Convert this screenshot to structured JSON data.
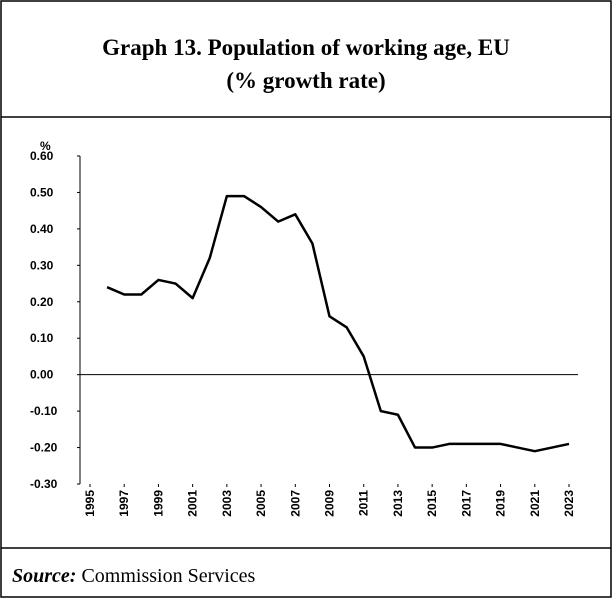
{
  "chart_data": {
    "type": "line",
    "title": "Graph 13. Population of working age, EU",
    "subtitle": "(% growth rate)",
    "y_label": "%",
    "x": [
      1996,
      1997,
      1998,
      1999,
      2000,
      2001,
      2002,
      2003,
      2004,
      2005,
      2006,
      2007,
      2008,
      2009,
      2010,
      2011,
      2012,
      2013,
      2014,
      2015,
      2016,
      2017,
      2018,
      2019,
      2020,
      2021,
      2022,
      2023
    ],
    "series": [
      {
        "name": null,
        "color": "#000000",
        "values": [
          0.24,
          0.22,
          0.22,
          0.26,
          0.25,
          0.21,
          0.32,
          0.49,
          0.49,
          0.46,
          0.42,
          0.44,
          0.36,
          0.16,
          0.13,
          0.05,
          -0.1,
          -0.11,
          -0.2,
          -0.2,
          -0.19,
          -0.19,
          -0.19,
          -0.19,
          -0.2,
          -0.21,
          -0.2,
          -0.19
        ]
      }
    ],
    "xlim": [
      1995,
      2023
    ],
    "xticks": [
      1995,
      1997,
      1999,
      2001,
      2003,
      2005,
      2007,
      2009,
      2011,
      2013,
      2015,
      2017,
      2019,
      2021,
      2023
    ],
    "ylim": [
      -0.3,
      0.6
    ],
    "yticks": [
      {
        "value": 0.6,
        "label": "0.60"
      },
      {
        "value": 0.5,
        "label": "0.50"
      },
      {
        "value": 0.4,
        "label": "0.40"
      },
      {
        "value": 0.3,
        "label": "0.30"
      },
      {
        "value": 0.2,
        "label": "0.20"
      },
      {
        "value": 0.1,
        "label": "0.10"
      },
      {
        "value": 0.0,
        "label": "0.00"
      },
      {
        "value": -0.1,
        "label": "-0.10"
      },
      {
        "value": -0.2,
        "label": "-0.20"
      },
      {
        "value": -0.3,
        "label": "-0.30"
      }
    ]
  },
  "source": {
    "label": "Source:",
    "text": "Commission Services"
  }
}
